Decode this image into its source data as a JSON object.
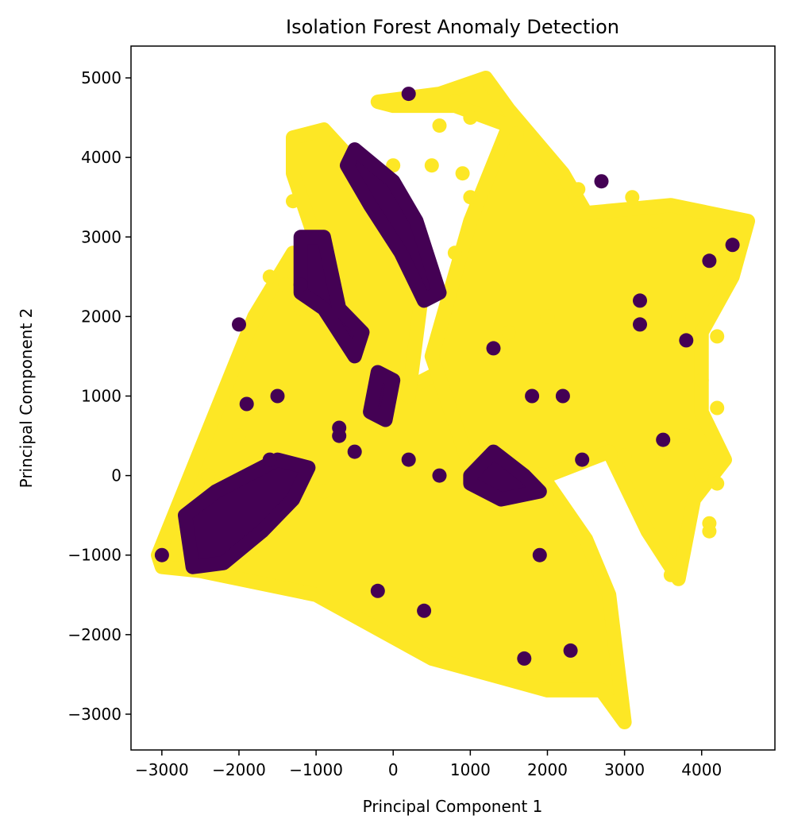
{
  "chart_data": {
    "type": "scatter",
    "title": "Isolation Forest Anomaly Detection",
    "xlabel": "Principal Component 1",
    "ylabel": "Principal Component 2",
    "xlim": [
      -3400,
      4950
    ],
    "ylim": [
      -3450,
      5400
    ],
    "xticks": [
      -3000,
      -2000,
      -1000,
      0,
      1000,
      2000,
      3000,
      4000
    ],
    "yticks": [
      -3000,
      -2000,
      -1000,
      0,
      1000,
      2000,
      3000,
      4000,
      5000
    ],
    "xtick_labels": [
      "−3000",
      "−2000",
      "−1000",
      "0",
      "1000",
      "2000",
      "3000",
      "4000"
    ],
    "ytick_labels": [
      "−3000",
      "−2000",
      "−1000",
      "0",
      "1000",
      "2000",
      "3000",
      "4000",
      "5000"
    ],
    "grid": false,
    "legend": false,
    "colors": {
      "normal": "#fde725",
      "anomaly": "#440154"
    },
    "regions": {
      "normal": [
        [
          [
            -3050,
            -1000
          ],
          [
            -1800,
            2000
          ],
          [
            -1300,
            2800
          ],
          [
            -800,
            2200
          ],
          [
            0,
            1000
          ],
          [
            1000,
            1500
          ],
          [
            1500,
            600
          ],
          [
            2500,
            -800
          ],
          [
            2800,
            -1500
          ],
          [
            3000,
            -3100
          ],
          [
            2700,
            -2700
          ],
          [
            2000,
            -2700
          ],
          [
            500,
            -2300
          ],
          [
            -1000,
            -1500
          ],
          [
            -2500,
            -1200
          ],
          [
            -3000,
            -1150
          ]
        ],
        [
          [
            -1300,
            4250
          ],
          [
            -900,
            4350
          ],
          [
            0,
            3400
          ],
          [
            400,
            2500
          ],
          [
            200,
            1000
          ],
          [
            -500,
            1500
          ],
          [
            -1300,
            3800
          ]
        ],
        [
          [
            -200,
            4700
          ],
          [
            600,
            4800
          ],
          [
            1200,
            5000
          ],
          [
            1500,
            4600
          ],
          [
            2200,
            3800
          ],
          [
            2500,
            3300
          ],
          [
            3600,
            3400
          ],
          [
            4600,
            3200
          ],
          [
            4400,
            2500
          ],
          [
            4000,
            1800
          ],
          [
            4000,
            800
          ],
          [
            4300,
            200
          ],
          [
            3900,
            -300
          ],
          [
            3700,
            -1300
          ],
          [
            3300,
            -700
          ],
          [
            2800,
            300
          ],
          [
            2000,
            0
          ],
          [
            1000,
            100
          ],
          [
            500,
            1500
          ],
          [
            1000,
            3200
          ],
          [
            1500,
            4400
          ],
          [
            800,
            4650
          ],
          [
            0,
            4650
          ]
        ]
      ],
      "anomaly": [
        [
          [
            -2700,
            -500
          ],
          [
            -2300,
            -200
          ],
          [
            -1500,
            200
          ],
          [
            -1100,
            100
          ],
          [
            -1300,
            -300
          ],
          [
            -1700,
            -700
          ],
          [
            -2200,
            -1100
          ],
          [
            -2600,
            -1150
          ]
        ],
        [
          [
            -1200,
            3000
          ],
          [
            -900,
            3000
          ],
          [
            -700,
            2100
          ],
          [
            -400,
            1800
          ],
          [
            -500,
            1500
          ],
          [
            -900,
            2100
          ],
          [
            -1200,
            2300
          ]
        ],
        [
          [
            -500,
            4100
          ],
          [
            0,
            3700
          ],
          [
            300,
            3200
          ],
          [
            600,
            2300
          ],
          [
            400,
            2200
          ],
          [
            100,
            2800
          ],
          [
            -300,
            3400
          ],
          [
            -600,
            3900
          ]
        ],
        [
          [
            -200,
            1300
          ],
          [
            0,
            1200
          ],
          [
            -100,
            700
          ],
          [
            -300,
            800
          ]
        ],
        [
          [
            1000,
            0
          ],
          [
            1300,
            300
          ],
          [
            1700,
            0
          ],
          [
            1900,
            -200
          ],
          [
            1400,
            -300
          ],
          [
            1000,
            -100
          ]
        ]
      ]
    },
    "anomaly_points": [
      [
        -3000,
        -1000
      ],
      [
        -2000,
        1900
      ],
      [
        -1900,
        900
      ],
      [
        -1500,
        1000
      ],
      [
        -700,
        600
      ],
      [
        -500,
        300
      ],
      [
        200,
        4800
      ],
      [
        1300,
        1600
      ],
      [
        1800,
        1000
      ],
      [
        2200,
        1000
      ],
      [
        2450,
        200
      ],
      [
        3500,
        450
      ],
      [
        3800,
        1700
      ],
      [
        4100,
        2700
      ],
      [
        4400,
        2900
      ],
      [
        -200,
        -1450
      ],
      [
        400,
        -1700
      ],
      [
        1700,
        -2300
      ],
      [
        2300,
        -2200
      ],
      [
        2700,
        3700
      ],
      [
        3200,
        2200
      ],
      [
        3200,
        1900
      ],
      [
        -1200,
        2400
      ],
      [
        -700,
        500
      ],
      [
        200,
        200
      ],
      [
        600,
        0
      ],
      [
        -1600,
        200
      ],
      [
        1900,
        -1000
      ]
    ],
    "normal_points": [
      [
        -1600,
        2500
      ],
      [
        -1200,
        2700
      ],
      [
        -1200,
        2100
      ],
      [
        -1300,
        3450
      ],
      [
        0,
        3900
      ],
      [
        500,
        3900
      ],
      [
        600,
        4400
      ],
      [
        1000,
        3500
      ],
      [
        900,
        3800
      ],
      [
        800,
        2800
      ],
      [
        3100,
        3500
      ],
      [
        3400,
        3200
      ],
      [
        4200,
        1750
      ],
      [
        4000,
        1200
      ],
      [
        4200,
        850
      ],
      [
        3000,
        250
      ],
      [
        3500,
        300
      ],
      [
        3800,
        500
      ],
      [
        3600,
        -1250
      ],
      [
        4100,
        -600
      ],
      [
        4100,
        -700
      ],
      [
        4200,
        -100
      ],
      [
        4000,
        0
      ],
      [
        -900,
        -200
      ],
      [
        -1400,
        2400
      ],
      [
        -700,
        2400
      ],
      [
        1000,
        4500
      ],
      [
        800,
        4700
      ],
      [
        1600,
        4300
      ],
      [
        2400,
        3600
      ],
      [
        3700,
        2000
      ],
      [
        2000,
        2000
      ],
      [
        1500,
        1800
      ],
      [
        -2000,
        500
      ],
      [
        -2400,
        0
      ],
      [
        -2700,
        -400
      ]
    ]
  }
}
